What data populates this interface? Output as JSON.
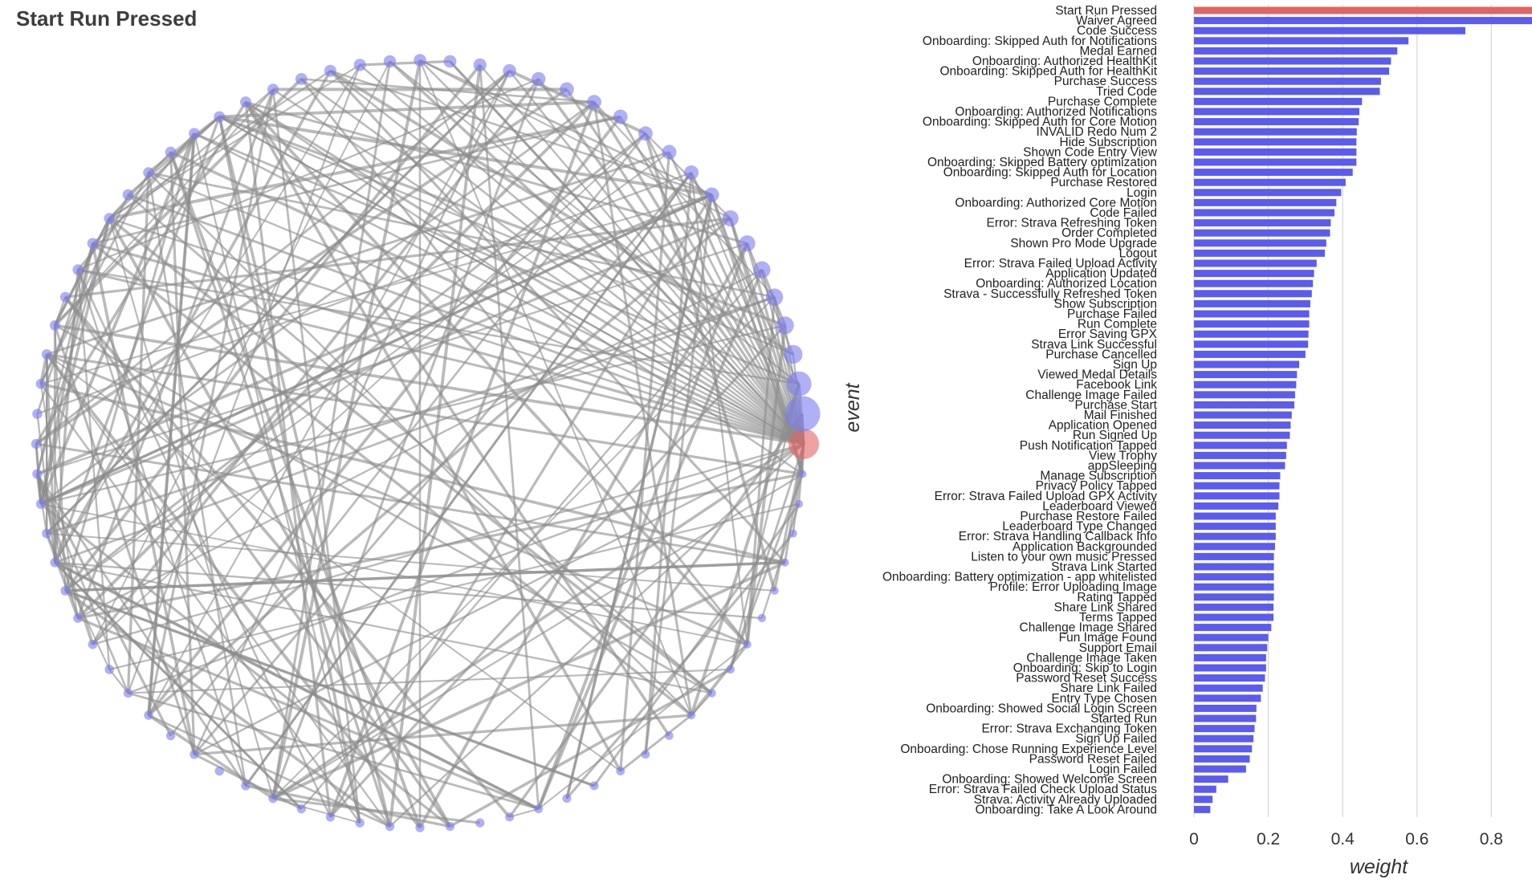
{
  "title": "Start Run Pressed",
  "colors": {
    "selected": "#e26464",
    "bar": "#5b5bee",
    "node": "#7b7bf0",
    "edge": "#8c8c8c",
    "grid": "#d9d9d9"
  },
  "chart_data": [
    {
      "type": "network",
      "layout": "circular",
      "selected_node": "Start Run Pressed",
      "node_order_counterclockwise_from_selected": [
        "Start Run Pressed",
        "Waiver Agreed",
        "Code Success",
        "Onboarding: Skipped Auth for Notifications",
        "Medal Earned",
        "Onboarding: Authorized HealthKit",
        "Onboarding: Skipped Auth for HealthKit",
        "Purchase Success",
        "Tried Code",
        "Purchase Complete",
        "Onboarding: Authorized Notifications",
        "Onboarding: Skipped Auth for Core Motion",
        "INVALID Redo Num 2",
        "Hide Subscription",
        "Shown Code Entry View",
        "Onboarding: Skipped Battery optimization",
        "Onboarding: Skipped Auth for Location",
        "Purchase Restored",
        "Login",
        "Onboarding: Authorized Core Motion",
        "Code Failed",
        "Error: Strava Refreshing Token",
        "Order Completed",
        "Shown Pro Mode Upgrade",
        "Logout",
        "Error: Strava Failed Upload Activity",
        "Application Updated",
        "Onboarding: Authorized Location",
        "Strava - Successfully Refreshed Token",
        "Show Subscription",
        "Purchase Failed",
        "Run Complete",
        "Error Saving GPX",
        "Strava Link Successful",
        "Purchase Cancelled",
        "Sign Up",
        "Viewed Medal Details",
        "Facebook Link",
        "Challenge Image Failed",
        "Purchase Start",
        "Mail Finished",
        "Application Opened",
        "Run Signed Up",
        "Push Notification Tapped",
        "View Trophy",
        "appSleeping",
        "Manage Subscription",
        "Privacy Policy Tapped",
        "Error: Strava Failed Upload GPX Activity",
        "Leaderboard Viewed",
        "Purchase Restore Failed",
        "Leaderboard Type Changed",
        "Error: Strava Handling Callback Info",
        "Application Backgrounded",
        "Listen to your own music Pressed",
        "Strava Link Started",
        "Onboarding: Battery optimization - app whitelisted",
        "Profile: Error Uploading Image",
        "Rating Tapped",
        "Share Link Shared",
        "Terms Tapped",
        "Challenge Image Shared",
        "Fun Image Found",
        "Support Email",
        "Challenge Image Taken",
        "Onboarding: Skip to Login",
        "Password Reset Success",
        "Share Link Failed",
        "Entry Type Chosen",
        "Onboarding: Showed Social Login Screen",
        "Started Run",
        "Error: Strava Exchanging Token",
        "Sign Up Failed",
        "Onboarding: Chose Running Experience Level",
        "Password Reset Failed",
        "Login Failed",
        "Onboarding: Showed Welcome Screen",
        "Error: Strava Failed Check Upload Status",
        "Strava: Activity Already Uploaded",
        "Onboarding: Take A Look Around"
      ],
      "node_size_encodes": "weight"
    },
    {
      "type": "bar",
      "orientation": "horizontal",
      "ylabel": "event",
      "xlabel": "weight",
      "xlim": [
        0,
        0.93
      ],
      "xticks": [
        0,
        0.2,
        0.4,
        0.6,
        0.8
      ],
      "xtick_labels": [
        "0",
        "0.2",
        "0.4",
        "0.6",
        "0.8"
      ],
      "grid": "vertical",
      "highlighted_category": "Start Run Pressed",
      "categories": [
        "Start Run Pressed",
        "Waiver Agreed",
        "Code Success",
        "Onboarding: Skipped Auth for Notifications",
        "Medal Earned",
        "Onboarding: Authorized HealthKit",
        "Onboarding: Skipped Auth for HealthKit",
        "Purchase Success",
        "Tried Code",
        "Purchase Complete",
        "Onboarding: Authorized Notifications",
        "Onboarding: Skipped Auth for Core Motion",
        "INVALID Redo Num 2",
        "Hide Subscription",
        "Shown Code Entry View",
        "Onboarding: Skipped Battery optimization",
        "Onboarding: Skipped Auth for Location",
        "Purchase Restored",
        "Login",
        "Onboarding: Authorized Core Motion",
        "Code Failed",
        "Error: Strava Refreshing Token",
        "Order Completed",
        "Shown Pro Mode Upgrade",
        "Logout",
        "Error: Strava Failed Upload Activity",
        "Application Updated",
        "Onboarding: Authorized Location",
        "Strava - Successfully Refreshed Token",
        "Show Subscription",
        "Purchase Failed",
        "Run Complete",
        "Error Saving GPX",
        "Strava Link Successful",
        "Purchase Cancelled",
        "Sign Up",
        "Viewed Medal Details",
        "Facebook Link",
        "Challenge Image Failed",
        "Purchase Start",
        "Mail Finished",
        "Application Opened",
        "Run Signed Up",
        "Push Notification Tapped",
        "View Trophy",
        "appSleeping",
        "Manage Subscription",
        "Privacy Policy Tapped",
        "Error: Strava Failed Upload GPX Activity",
        "Leaderboard Viewed",
        "Purchase Restore Failed",
        "Leaderboard Type Changed",
        "Error: Strava Handling Callback Info",
        "Application Backgrounded",
        "Listen to your own music Pressed",
        "Strava Link Started",
        "Onboarding: Battery optimization - app whitelisted",
        "Profile: Error Uploading Image",
        "Rating Tapped",
        "Share Link Shared",
        "Terms Tapped",
        "Challenge Image Shared",
        "Fun Image Found",
        "Support Email",
        "Challenge Image Taken",
        "Onboarding: Skip to Login",
        "Password Reset Success",
        "Share Link Failed",
        "Entry Type Chosen",
        "Onboarding: Showed Social Login Screen",
        "Started Run",
        "Error: Strava Exchanging Token",
        "Sign Up Failed",
        "Onboarding: Chose Running Experience Level",
        "Password Reset Failed",
        "Login Failed",
        "Onboarding: Showed Welcome Screen",
        "Error: Strava Failed Check Upload Status",
        "Strava: Activity Already Uploaded",
        "Onboarding: Take A Look Around"
      ],
      "values": [
        1.0,
        0.95,
        0.73,
        0.577,
        0.547,
        0.53,
        0.525,
        0.503,
        0.5,
        0.452,
        0.445,
        0.443,
        0.438,
        0.437,
        0.437,
        0.437,
        0.427,
        0.408,
        0.396,
        0.383,
        0.378,
        0.368,
        0.366,
        0.356,
        0.352,
        0.33,
        0.323,
        0.32,
        0.317,
        0.313,
        0.31,
        0.31,
        0.308,
        0.307,
        0.3,
        0.283,
        0.277,
        0.275,
        0.272,
        0.27,
        0.263,
        0.26,
        0.258,
        0.25,
        0.248,
        0.245,
        0.232,
        0.23,
        0.23,
        0.227,
        0.22,
        0.22,
        0.22,
        0.218,
        0.215,
        0.215,
        0.215,
        0.215,
        0.215,
        0.214,
        0.214,
        0.208,
        0.2,
        0.197,
        0.194,
        0.194,
        0.191,
        0.185,
        0.18,
        0.168,
        0.167,
        0.163,
        0.16,
        0.156,
        0.15,
        0.14,
        0.092,
        0.06,
        0.05,
        0.044
      ]
    }
  ]
}
